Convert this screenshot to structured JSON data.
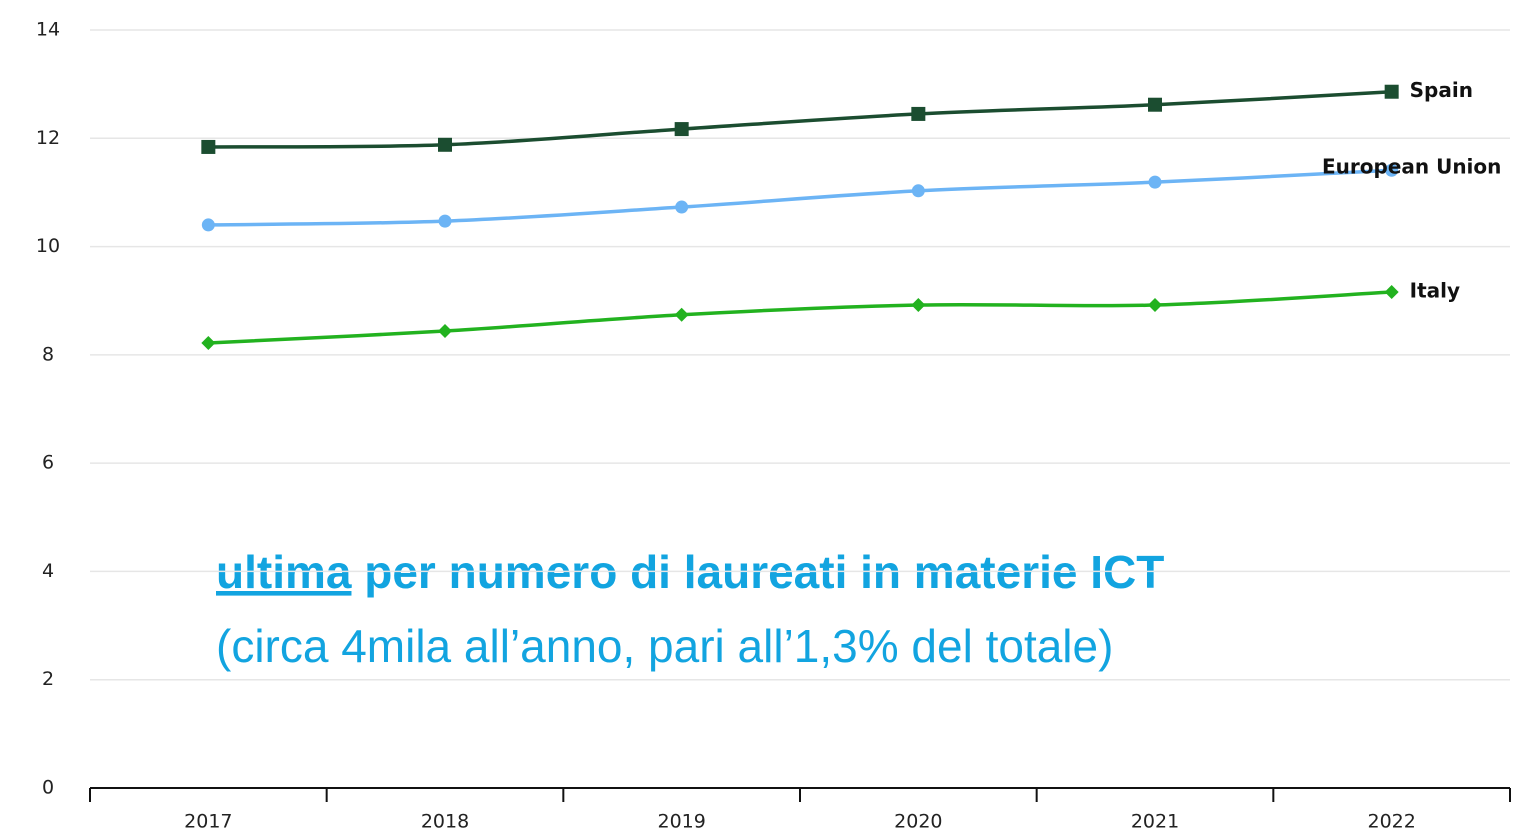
{
  "chart_data": {
    "type": "line",
    "categories": [
      "2017",
      "2018",
      "2019",
      "2020",
      "2021",
      "2022"
    ],
    "series": [
      {
        "name": "Spain",
        "color": "#1b4d30",
        "marker": "square",
        "values": [
          11.84,
          11.88,
          12.17,
          12.45,
          12.62,
          12.86
        ]
      },
      {
        "name": "European Union",
        "color": "#6cb4f5",
        "marker": "circle",
        "values": [
          10.4,
          10.47,
          10.73,
          11.03,
          11.19,
          11.41
        ]
      },
      {
        "name": "Italy",
        "color": "#22b21f",
        "marker": "diamond",
        "values": [
          8.22,
          8.44,
          8.74,
          8.92,
          8.92,
          9.16
        ]
      }
    ],
    "ylim": [
      0,
      14
    ],
    "yticks": [
      0,
      2,
      4,
      6,
      8,
      10,
      12,
      14
    ],
    "grid": true,
    "annotations": [
      "ultima",
      "per numero di laureati in materie ICT",
      "(circa 4mila all’anno, pari all’1,3% del totale)"
    ]
  }
}
